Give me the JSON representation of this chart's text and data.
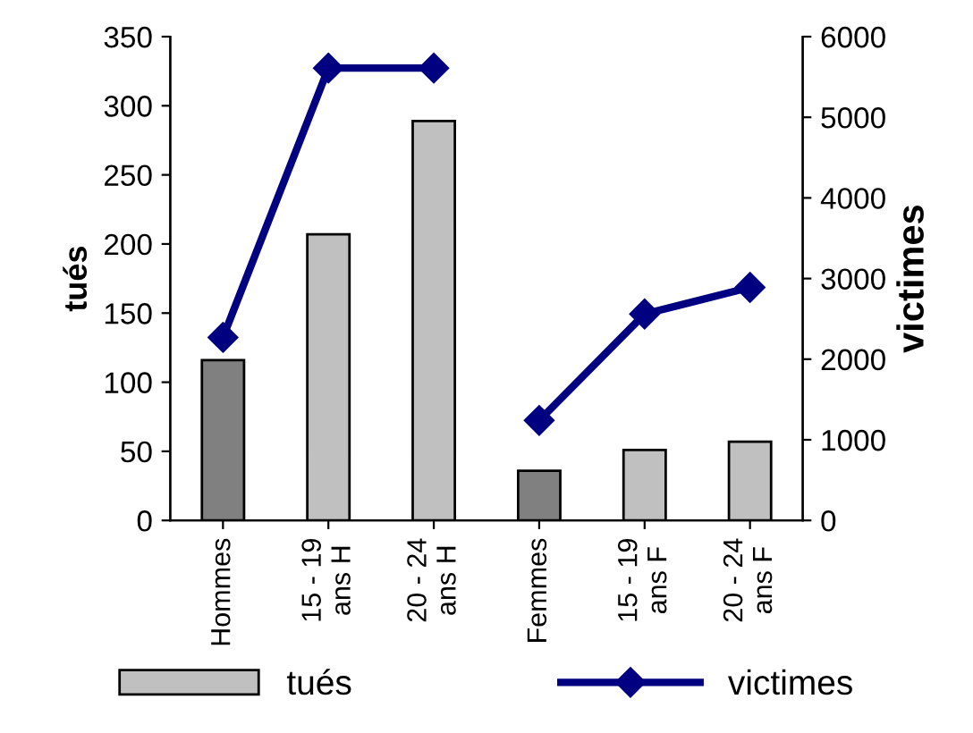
{
  "chart_data": {
    "type": "bar",
    "ylabel": "tués",
    "y2label": "victimes",
    "categories": [
      "Hommes",
      "15 - 19\nans H",
      "20 - 24\nans H",
      "Femmes",
      "15 - 19\nans F",
      "20 - 24\nans F"
    ],
    "series": [
      {
        "name": "tués",
        "colors": [
          "#808080",
          "#c0c0c0",
          "#c0c0c0",
          "#808080",
          "#c0c0c0",
          "#c0c0c0"
        ],
        "color": "#c0c0c0",
        "values": [
          116,
          207,
          289,
          36,
          51,
          57
        ]
      },
      {
        "name": "victimes",
        "type": "line",
        "axis": "y2",
        "color": "#000080",
        "values": [
          2270,
          5610,
          5610,
          null,
          null,
          null
        ]
      },
      {
        "type": "line",
        "axis": "y2",
        "color": "#000080",
        "values": [
          null,
          null,
          null,
          1240,
          2560,
          2890
        ]
      }
    ],
    "ylim": [
      0,
      350
    ],
    "yticks": [
      0,
      50,
      100,
      150,
      200,
      250,
      300,
      350
    ],
    "y2lim": [
      0,
      6000
    ],
    "y2ticks": [
      0,
      1000,
      2000,
      3000,
      4000,
      5000,
      6000
    ],
    "marker": "diamond",
    "line_style": "solid",
    "grid": false,
    "legend": "bottom"
  }
}
